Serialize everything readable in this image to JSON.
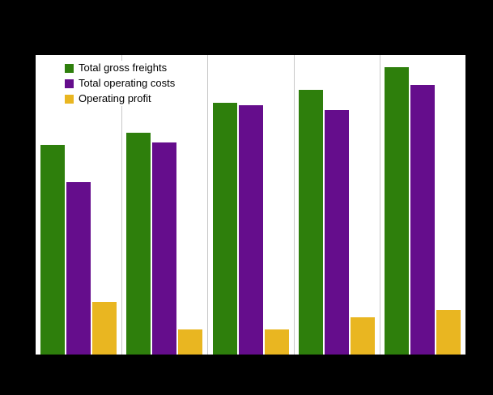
{
  "page": {
    "background_color": "#000000",
    "plot_background_color": "#ffffff",
    "gridline_color": "#c8c8c8"
  },
  "chart_data": {
    "type": "bar",
    "title": "",
    "xlabel": "",
    "ylabel": "",
    "categories": [
      "",
      "",
      "",
      "",
      ""
    ],
    "series": [
      {
        "name": "Total gross freights",
        "color": "#2e7f0c",
        "values": [
          84,
          89,
          101,
          106,
          115
        ]
      },
      {
        "name": "Total operating costs",
        "color": "#650d8c",
        "values": [
          69,
          85,
          100,
          98,
          108
        ]
      },
      {
        "name": "Operating profit",
        "color": "#e9b621",
        "values": [
          21,
          10,
          10,
          15,
          18
        ]
      }
    ],
    "ylim": [
      0,
      120
    ],
    "grid": "vertical-only",
    "legend_position": "top-left-inside",
    "axis_tick_labels_visible": false
  }
}
